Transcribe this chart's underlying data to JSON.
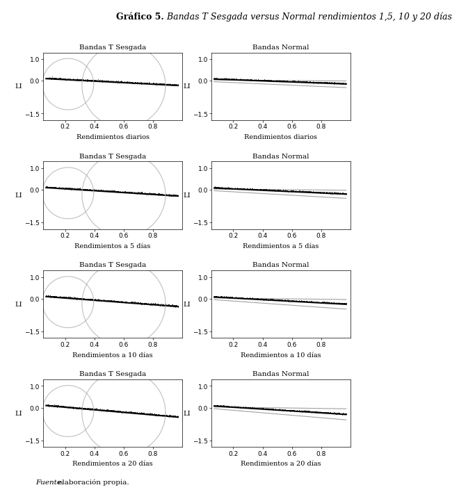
{
  "title_bold": "Gráfico 5.",
  "title_italic": " Bandas T Sesgada versus Normal rendimientos 1,5, 10 y 20 días",
  "rows": [
    {
      "left_title": "Bandas T Sesgada",
      "right_title": "Bandas Normal",
      "xlabel": "Rendimientos diarios",
      "days": 1
    },
    {
      "left_title": "Bandas T Sesgada",
      "right_title": "Bandas Normal",
      "xlabel": "Rendimientos a 5 días",
      "days": 5
    },
    {
      "left_title": "Bandas T Sesgada",
      "right_title": "Bandas Normal",
      "xlabel": "Rendimientos a 10 días",
      "days": 10
    },
    {
      "left_title": "Bandas T Sesgada",
      "right_title": "Bandas Normal",
      "xlabel": "Rendimientos a 20 días",
      "days": 20
    }
  ],
  "ylabel": "LI",
  "xlim": [
    0.05,
    1.0
  ],
  "ylim": [
    -1.8,
    1.3
  ],
  "xticks": [
    0.2,
    0.4,
    0.6,
    0.8
  ],
  "yticks": [
    -1.5,
    0.0,
    1.0
  ],
  "background_color": "#ffffff",
  "circle_color": "#aaaaaa",
  "band_color": "#888888",
  "footnote_italic": "Fuente:",
  "footnote_normal": " elaboración propia."
}
